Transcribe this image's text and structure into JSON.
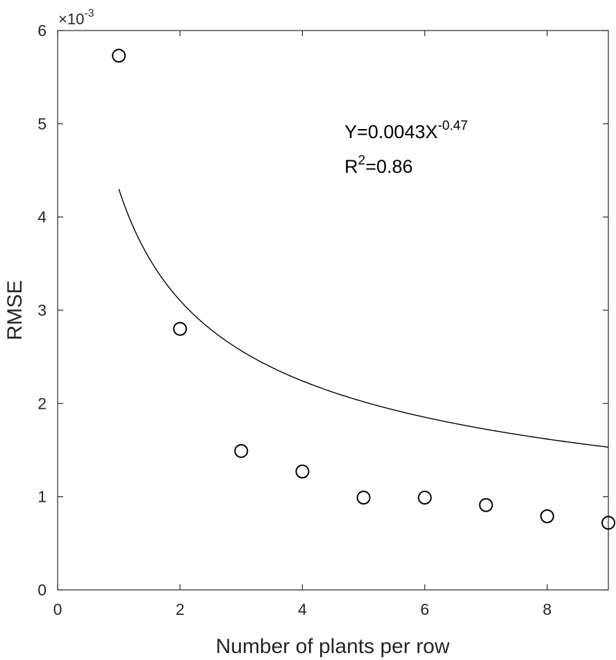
{
  "chart_data": {
    "type": "scatter",
    "title": "",
    "xlabel": "Number of plants per row",
    "ylabel": "RMSE",
    "xlim": [
      0,
      9
    ],
    "ylim": [
      0,
      6
    ],
    "xticks": [
      "0",
      "2",
      "4",
      "6",
      "8"
    ],
    "yticks": [
      "0",
      "1",
      "2",
      "3",
      "4",
      "5",
      "6"
    ],
    "y_exponent": {
      "prefix": "×10",
      "power": "-3"
    },
    "y_scale_note": "values in units of 10^-3",
    "grid": false,
    "box": true,
    "series": [
      {
        "marker": "open-circle",
        "x": [
          1,
          2,
          3,
          4,
          5,
          6,
          7,
          8,
          9
        ],
        "y": [
          5.73,
          2.8,
          1.49,
          1.27,
          0.99,
          0.99,
          0.91,
          0.79,
          0.72
        ]
      }
    ],
    "fit": {
      "model": "power",
      "a": 4.3,
      "b": -0.47,
      "x_range": [
        1,
        9
      ]
    },
    "annotation": {
      "line1_main": "Y=0.0043X",
      "line1_sup": "-0.47",
      "line2_main": "R",
      "line2_sup": "2",
      "line2_rest": "=0.86"
    },
    "colors": {
      "marker": "#000000",
      "fit_line": "#000000",
      "axis": "#262626"
    }
  }
}
